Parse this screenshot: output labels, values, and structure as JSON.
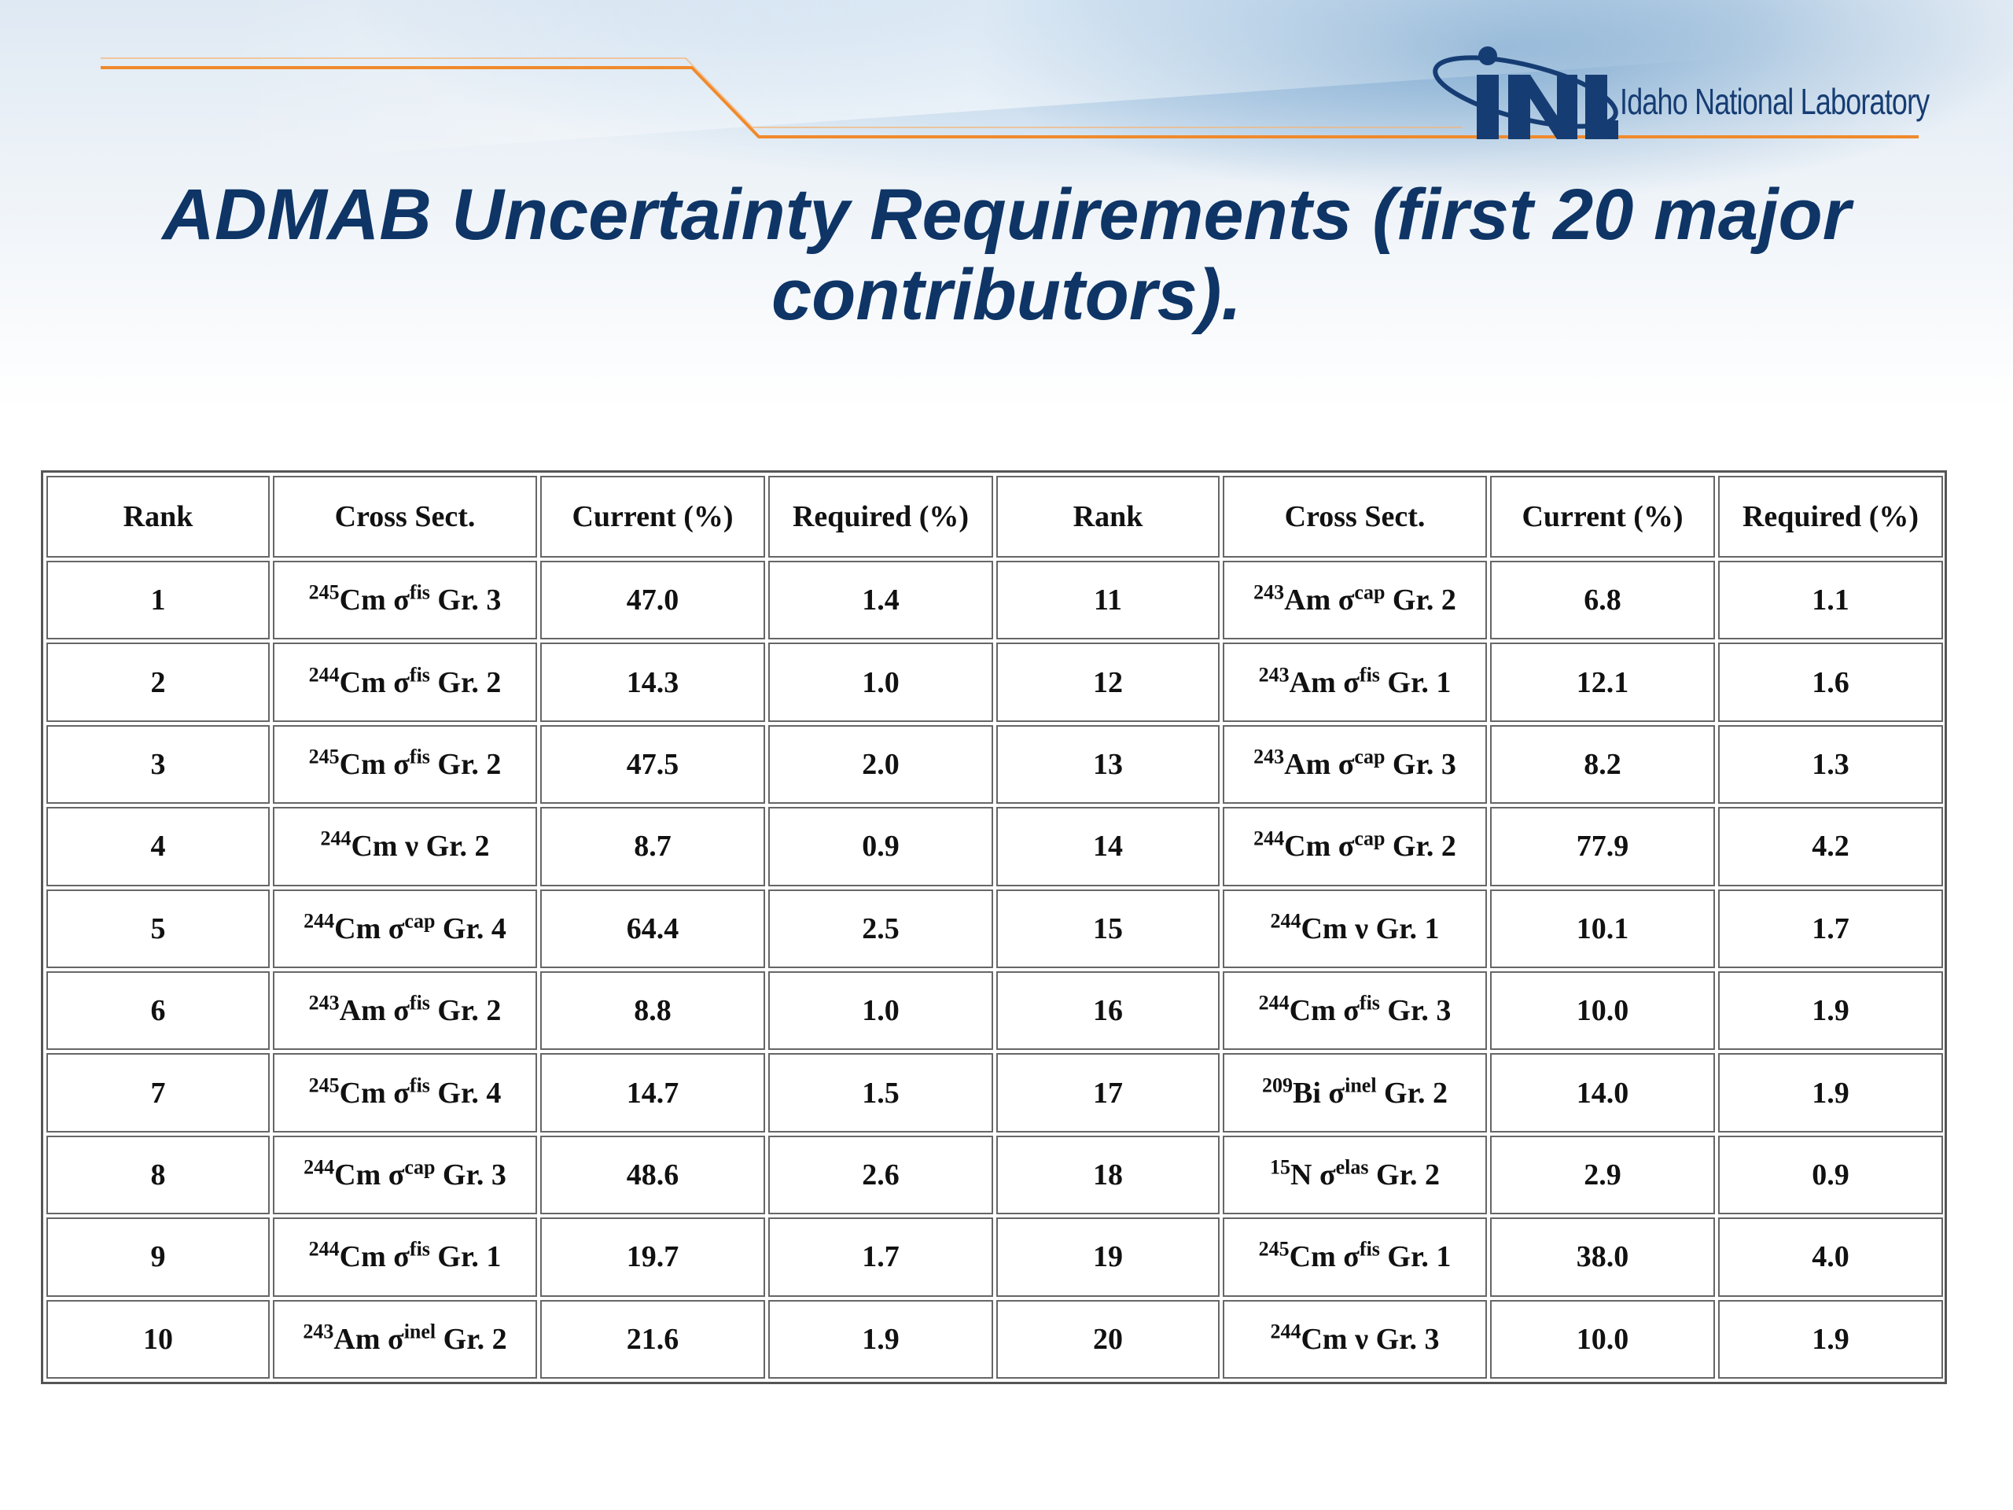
{
  "title": "ADMAB Uncertainty Requirements (first 20 major contributors).",
  "logo": {
    "mark": "INL",
    "text": "Idaho National Laboratory"
  },
  "colors": {
    "title": "#0e3566",
    "accent_orange": "#f08a2c",
    "logo_blue": "#163d73"
  },
  "table": {
    "headers": [
      "Rank",
      "Cross Sect.",
      "Current (%)",
      "Required (%)",
      "Rank",
      "Cross Sect.",
      "Current (%)",
      "Required (%)"
    ],
    "rows": [
      [
        {
          "rank": "1",
          "iso": "245",
          "el": "Cm",
          "rx": "fis",
          "grp": "Gr. 3",
          "cur": "47.0",
          "req": "1.4"
        },
        {
          "rank": "11",
          "iso": "243",
          "el": "Am",
          "rx": "cap",
          "grp": "Gr. 2",
          "cur": "6.8",
          "req": "1.1"
        }
      ],
      [
        {
          "rank": "2",
          "iso": "244",
          "el": "Cm",
          "rx": "fis",
          "grp": "Gr. 2",
          "cur": "14.3",
          "req": "1.0"
        },
        {
          "rank": "12",
          "iso": "243",
          "el": "Am",
          "rx": "fis",
          "grp": "Gr. 1",
          "cur": "12.1",
          "req": "1.6"
        }
      ],
      [
        {
          "rank": "3",
          "iso": "245",
          "el": "Cm",
          "rx": "fis",
          "grp": "Gr. 2",
          "cur": "47.5",
          "req": "2.0"
        },
        {
          "rank": "13",
          "iso": "243",
          "el": "Am",
          "rx": "cap",
          "grp": "Gr. 3",
          "cur": "8.2",
          "req": "1.3"
        }
      ],
      [
        {
          "rank": "4",
          "iso": "244",
          "el": "Cm",
          "sym": "ν",
          "grp": "Gr. 2",
          "cur": "8.7",
          "req": "0.9"
        },
        {
          "rank": "14",
          "iso": "244",
          "el": "Cm",
          "rx": "cap",
          "grp": "Gr. 2",
          "cur": "77.9",
          "req": "4.2"
        }
      ],
      [
        {
          "rank": "5",
          "iso": "244",
          "el": "Cm",
          "rx": "cap",
          "grp": "Gr. 4",
          "cur": "64.4",
          "req": "2.5"
        },
        {
          "rank": "15",
          "iso": "244",
          "el": "Cm",
          "sym": "ν",
          "grp": "Gr. 1",
          "cur": "10.1",
          "req": "1.7"
        }
      ],
      [
        {
          "rank": "6",
          "iso": "243",
          "el": "Am",
          "rx": "fis",
          "grp": "Gr. 2",
          "cur": "8.8",
          "req": "1.0"
        },
        {
          "rank": "16",
          "iso": "244",
          "el": "Cm",
          "rx": "fis",
          "grp": "Gr. 3",
          "cur": "10.0",
          "req": "1.9"
        }
      ],
      [
        {
          "rank": "7",
          "iso": "245",
          "el": "Cm",
          "rx": "fis",
          "grp": "Gr. 4",
          "cur": "14.7",
          "req": "1.5"
        },
        {
          "rank": "17",
          "iso": "209",
          "el": "Bi",
          "rx": "inel",
          "grp": "Gr. 2",
          "cur": "14.0",
          "req": "1.9"
        }
      ],
      [
        {
          "rank": "8",
          "iso": "244",
          "el": "Cm",
          "rx": "cap",
          "grp": "Gr. 3",
          "cur": "48.6",
          "req": "2.6"
        },
        {
          "rank": "18",
          "iso": "15",
          "el": "N",
          "rx": "elas",
          "grp": "Gr. 2",
          "cur": "2.9",
          "req": "0.9"
        }
      ],
      [
        {
          "rank": "9",
          "iso": "244",
          "el": "Cm",
          "rx": "fis",
          "grp": "Gr. 1",
          "cur": "19.7",
          "req": "1.7"
        },
        {
          "rank": "19",
          "iso": "245",
          "el": "Cm",
          "rx": "fis",
          "grp": "Gr. 1",
          "cur": "38.0",
          "req": "4.0"
        }
      ],
      [
        {
          "rank": "10",
          "iso": "243",
          "el": "Am",
          "rx": "inel",
          "grp": "Gr. 2",
          "cur": "21.6",
          "req": "1.9"
        },
        {
          "rank": "20",
          "iso": "244",
          "el": "Cm",
          "sym": "ν",
          "grp": "Gr. 3",
          "cur": "10.0",
          "req": "1.9"
        }
      ]
    ]
  }
}
